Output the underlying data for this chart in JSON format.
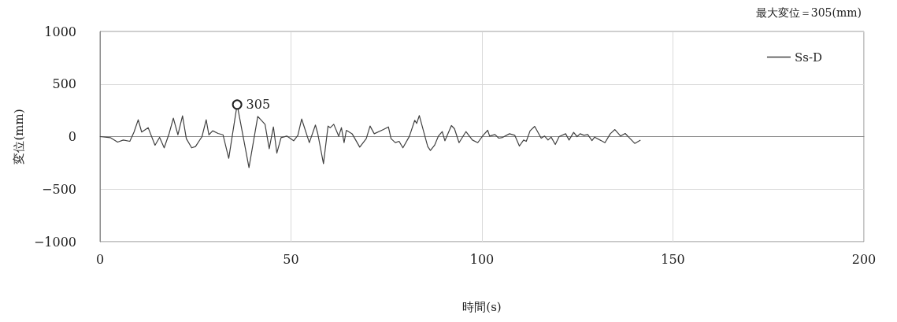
{
  "chart_data": {
    "type": "line",
    "title": "最大変位＝305(mm)",
    "xlabel": "時間(s)",
    "ylabel": "変位(mm)",
    "xlim": [
      0,
      200
    ],
    "xticks": [
      0,
      50,
      100,
      150,
      200
    ],
    "ylim": [
      -1000,
      1000
    ],
    "yticks": [
      -1000,
      -500,
      0,
      500,
      1000
    ],
    "grid": true,
    "legend": "top right",
    "marker": "none",
    "line_style": "solid",
    "annotations": [
      {
        "text": "305",
        "x": 35.9,
        "y": 305
      }
    ],
    "series": [
      {
        "name": "Ss-D",
        "color": "#404040",
        "x": [
          0,
          2.7,
          4.6,
          6.1,
          7.8,
          8.9,
          10.0,
          10.9,
          12.6,
          14.4,
          15.6,
          16.8,
          18.1,
          19.2,
          20.4,
          21.6,
          22.6,
          24.0,
          25.0,
          26.7,
          27.8,
          28.5,
          29.5,
          30.9,
          32.2,
          33.7,
          35.9,
          39.0,
          41.3,
          43.2,
          44.3,
          45.4,
          46.3,
          47.4,
          48.9,
          50.7,
          51.8,
          52.8,
          54.8,
          56.4,
          57.0,
          58.5,
          59.7,
          60.3,
          61.2,
          62.5,
          63.2,
          63.9,
          64.5,
          66.0,
          68.0,
          69.7,
          70.7,
          71.8,
          74.2,
          75.5,
          76.2,
          77.3,
          78.3,
          79.3,
          81.0,
          82.4,
          82.9,
          83.6,
          85.8,
          86.5,
          87.6,
          88.6,
          89.6,
          90.3,
          92.0,
          92.8,
          94.0,
          95.8,
          97.5,
          98.9,
          100.3,
          101.5,
          102.0,
          103.4,
          104.4,
          105.4,
          107.2,
          108.6,
          109.8,
          110.9,
          111.6,
          112.6,
          113.8,
          115.5,
          116.4,
          117.3,
          118.1,
          119.2,
          120.2,
          121.9,
          122.8,
          124.0,
          124.9,
          125.7,
          126.7,
          127.7,
          128.8,
          129.5,
          132.2,
          133.6,
          134.8,
          136.3,
          137.5,
          138.4,
          140.0,
          141.5
        ],
        "values": [
          0,
          -10,
          -52,
          -33,
          -45,
          43,
          160,
          43,
          85,
          -82,
          -7,
          -107,
          30,
          175,
          17,
          197,
          -20,
          -107,
          -95,
          0,
          160,
          17,
          55,
          30,
          17,
          -207,
          305,
          -295,
          192,
          117,
          -115,
          92,
          -157,
          -10,
          5,
          -40,
          12,
          167,
          -57,
          110,
          30,
          -257,
          100,
          85,
          117,
          3,
          85,
          -58,
          60,
          27,
          -100,
          -20,
          100,
          27,
          67,
          92,
          -20,
          -57,
          -45,
          -107,
          3,
          155,
          125,
          200,
          -95,
          -132,
          -82,
          5,
          47,
          -40,
          105,
          75,
          -58,
          47,
          -33,
          -58,
          12,
          60,
          5,
          20,
          -15,
          -8,
          27,
          12,
          -90,
          -33,
          -45,
          55,
          97,
          -15,
          5,
          -33,
          -5,
          -75,
          0,
          27,
          -33,
          40,
          0,
          27,
          12,
          20,
          -38,
          -5,
          -58,
          27,
          67,
          5,
          30,
          -5,
          -65,
          -33
        ]
      }
    ]
  }
}
